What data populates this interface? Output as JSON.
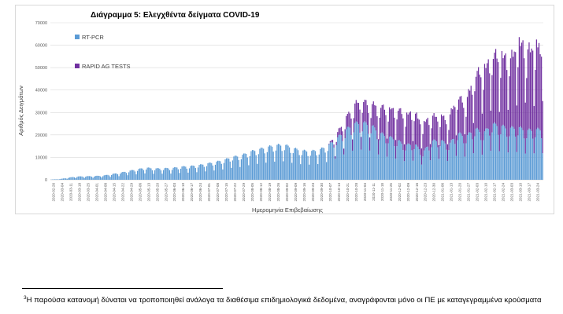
{
  "colors": {
    "rt_pcr": "#5b9bd5",
    "rapid_ag": "#7030a0",
    "grid": "#d9d9d9",
    "axis_text": "#595959"
  },
  "chart_data": {
    "type": "bar",
    "stacked": true,
    "title": "Διάγραμμα 5: Ελεγχθέντα δείγματα COVID-19",
    "xlabel": "Ημερομηνία Επιβεβαίωσης",
    "ylabel": "Αριθμός Δειγμάτων",
    "ylim": [
      0,
      70000
    ],
    "yticks": [
      "0",
      "10000",
      "20000",
      "30000",
      "40000",
      "50000",
      "60000",
      "70000"
    ],
    "legend_placement": "top-left inside",
    "grid": "horizontal",
    "categories": [
      "2020-02-26",
      "2020-03-04",
      "2020-03-11",
      "2020-03-18",
      "2020-03-25",
      "2020-04-01",
      "2020-04-08",
      "2020-04-15",
      "2020-04-22",
      "2020-04-29",
      "2020-05-06",
      "2020-05-13",
      "2020-05-20",
      "2020-05-27",
      "2020-06-03",
      "2020-06-10",
      "2020-06-17",
      "2020-06-24",
      "2020-07-01",
      "2020-07-08",
      "2020-07-15",
      "2020-07-22",
      "2020-07-29",
      "2020-08-05",
      "2020-08-12",
      "2020-08-19",
      "2020-08-26",
      "2020-09-02",
      "2020-09-09",
      "2020-09-16",
      "2020-09-23",
      "2020-09-30",
      "2020-10-07",
      "2020-10-14",
      "2020-10-21",
      "2020-10-28",
      "2020-11-04",
      "2020-11-11",
      "2020-11-18",
      "2020-11-25",
      "2020-12-02",
      "2020-12-09",
      "2020-12-16",
      "2020-12-23",
      "2020-12-30",
      "2021-01-06",
      "2021-01-13",
      "2021-01-20",
      "2021-01-27",
      "2021-02-03",
      "2021-02-10",
      "2021-02-17",
      "2021-02-24",
      "2021-03-03",
      "2021-03-10",
      "2021-03-17",
      "2021-03-24"
    ],
    "series": [
      {
        "name": "RT-PCR",
        "values": [
          100,
          300,
          900,
          1400,
          1500,
          1600,
          1800,
          2400,
          3000,
          3800,
          4500,
          5200,
          4800,
          4900,
          5000,
          5600,
          5800,
          6200,
          6900,
          7600,
          8500,
          9800,
          10400,
          12000,
          13000,
          14000,
          14800,
          15000,
          13500,
          12500,
          12200,
          12800,
          14600,
          17500,
          21000,
          24000,
          24500,
          23500,
          20000,
          18500,
          17000,
          14800,
          15500,
          11800,
          16500,
          17000,
          15000,
          20000,
          18500,
          22000,
          20000,
          24000,
          23000,
          22000,
          22500,
          21000,
          21500
        ]
      },
      {
        "name": "RAPID AG TESTS",
        "values": [
          0,
          0,
          0,
          0,
          0,
          0,
          0,
          0,
          0,
          0,
          0,
          0,
          0,
          0,
          0,
          0,
          0,
          0,
          0,
          0,
          0,
          0,
          0,
          0,
          0,
          0,
          0,
          0,
          0,
          0,
          0,
          0,
          0,
          2000,
          5000,
          8500,
          10000,
          9000,
          12000,
          12500,
          14000,
          13500,
          14500,
          12500,
          11500,
          10500,
          12000,
          16500,
          15500,
          24000,
          29000,
          30000,
          32000,
          31000,
          38000,
          36500,
          37000
        ]
      }
    ],
    "category_labels": [
      "2020-02-26",
      "2020-03-04",
      "2020-03-11",
      "2020-03-18",
      "2020-03-25",
      "2020-04-01",
      "2020-04-08",
      "2020-04-15",
      "2020-04-22",
      "2020-04-29",
      "2020-05-06",
      "2020-05-13",
      "2020-05-20",
      "2020-05-27",
      "2020-06-03",
      "2020-06-10",
      "2020-06-17",
      "2020-06-24",
      "2020-07-01",
      "2020-07-08",
      "2020-07-15",
      "2020-07-22",
      "2020-07-29",
      "2020-08-05",
      "2020-08-12",
      "2020-08-19",
      "2020-08-26",
      "2020-09-02",
      "2020-09-09",
      "2020-09-16",
      "2020-09-23",
      "2020-09-30",
      "2020-10-07",
      "2020-10-14",
      "2020-10-21",
      "2020-10-28",
      "2020-11-04",
      "2020-11-11",
      "2020-11-18",
      "2020-11-25",
      "2020-12-02",
      "2020-12-09",
      "2020-12-16",
      "2020-12-23",
      "2020-12-30",
      "2021-01-06",
      "2021-01-13",
      "2021-01-20",
      "2021-01-27",
      "2021-02-03",
      "2021-02-10",
      "2021-02-17",
      "2021-02-24",
      "2021-03-03",
      "2021-03-10",
      "2021-03-17",
      "2021-03-24"
    ]
  },
  "footnote": {
    "marker": "3",
    "text": "Η παρούσα κατανομή δύναται να τροποποιηθεί ανάλογα τα διαθέσιμα επιδημιολογικά δεδομένα, αναγράφονται μόνο οι ΠΕ με καταγεγραμμένα κρούσματα"
  }
}
